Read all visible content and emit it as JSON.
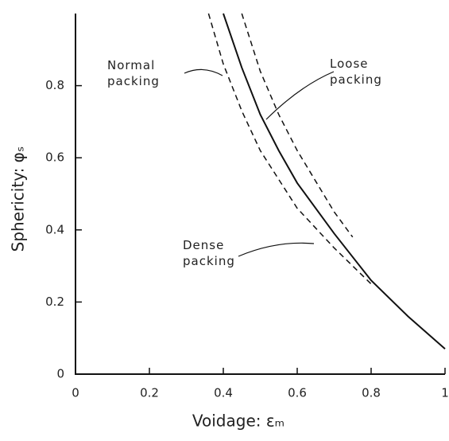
{
  "chart_data": {
    "type": "line",
    "xlabel": "Voidage: εₘ",
    "ylabel": "Sphericity: φₛ",
    "xlim": [
      0,
      1
    ],
    "ylim": [
      0,
      1
    ],
    "xticks": [
      0,
      0.2,
      0.4,
      0.6,
      0.8,
      1
    ],
    "yticks": [
      0,
      0.2,
      0.4,
      0.6,
      0.8
    ],
    "series": [
      {
        "name": "Dense packing",
        "color": "#111111",
        "style": "dashed",
        "x": [
          0.36,
          0.4,
          0.45,
          0.5,
          0.6,
          0.7,
          0.8
        ],
        "values": [
          1,
          0.86,
          0.73,
          0.62,
          0.46,
          0.35,
          0.25
        ]
      },
      {
        "name": "Normal packing",
        "color": "#111111",
        "style": "solid",
        "x": [
          0.4,
          0.45,
          0.5,
          0.55,
          0.6,
          0.7,
          0.8,
          0.9,
          1
        ],
        "values": [
          1,
          0.85,
          0.72,
          0.62,
          0.53,
          0.39,
          0.26,
          0.16,
          0.07
        ]
      },
      {
        "name": "Loose packing",
        "color": "#111111",
        "style": "dashed",
        "x": [
          0.45,
          0.5,
          0.55,
          0.6,
          0.7,
          0.75
        ],
        "values": [
          1,
          0.84,
          0.72,
          0.62,
          0.45,
          0.38
        ]
      }
    ]
  }
}
